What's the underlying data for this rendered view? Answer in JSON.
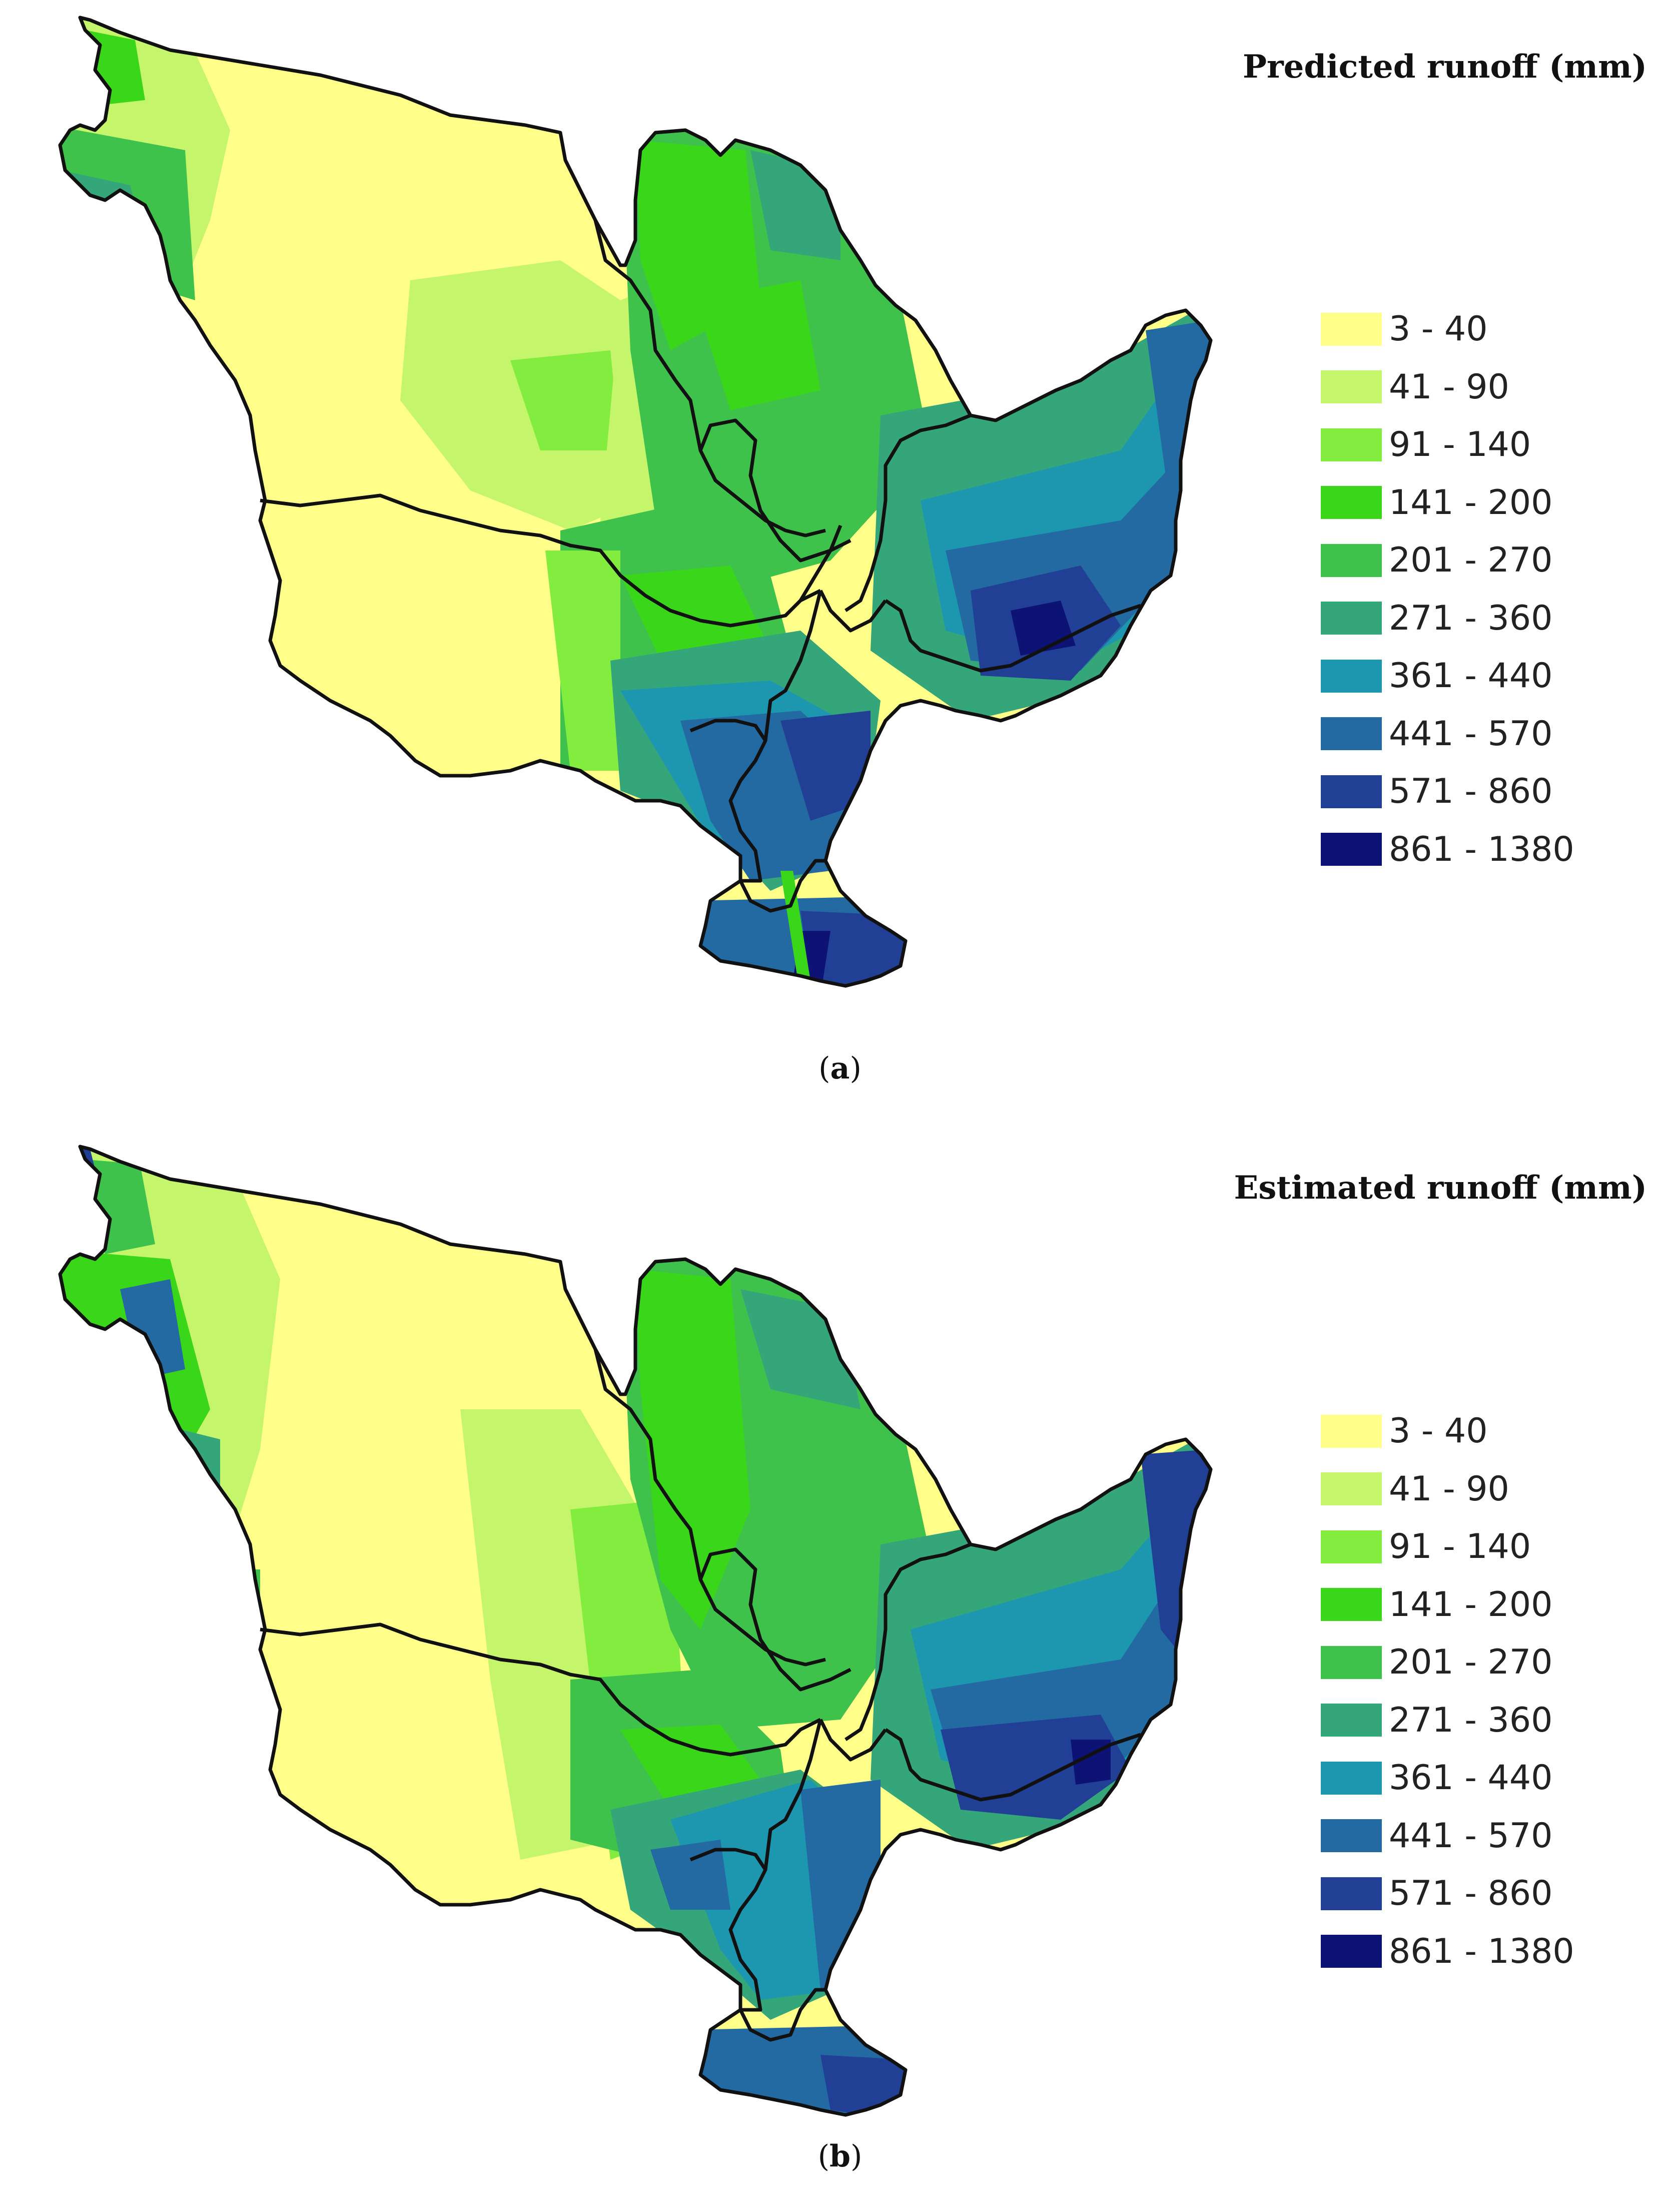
{
  "panels": [
    {
      "id": "a",
      "legend_title": "Predicted runoff (mm)",
      "caption_open": "(",
      "caption_letter": "a",
      "caption_close": ")"
    },
    {
      "id": "b",
      "legend_title": "Estimated runoff (mm)",
      "caption_open": "(",
      "caption_letter": "b",
      "caption_close": ")"
    }
  ],
  "legend_classes": [
    {
      "label": "3 - 40",
      "color": "#ffff8a"
    },
    {
      "label": "41 - 90",
      "color": "#c5f56b"
    },
    {
      "label": "91 - 140",
      "color": "#82ec3f"
    },
    {
      "label": "141 - 200",
      "color": "#3ad61a"
    },
    {
      "label": "201 - 270",
      "color": "#3fc24c"
    },
    {
      "label": "271 - 360",
      "color": "#34a67a"
    },
    {
      "label": "361 - 440",
      "color": "#1d97b0"
    },
    {
      "label": "441 - 570",
      "color": "#246aa2"
    },
    {
      "label": "571 - 860",
      "color": "#223f96"
    },
    {
      "label": "861 - 1380",
      "color": "#0d1275"
    }
  ],
  "colors": {
    "boundary": "#111111",
    "background": "#ffffff"
  }
}
